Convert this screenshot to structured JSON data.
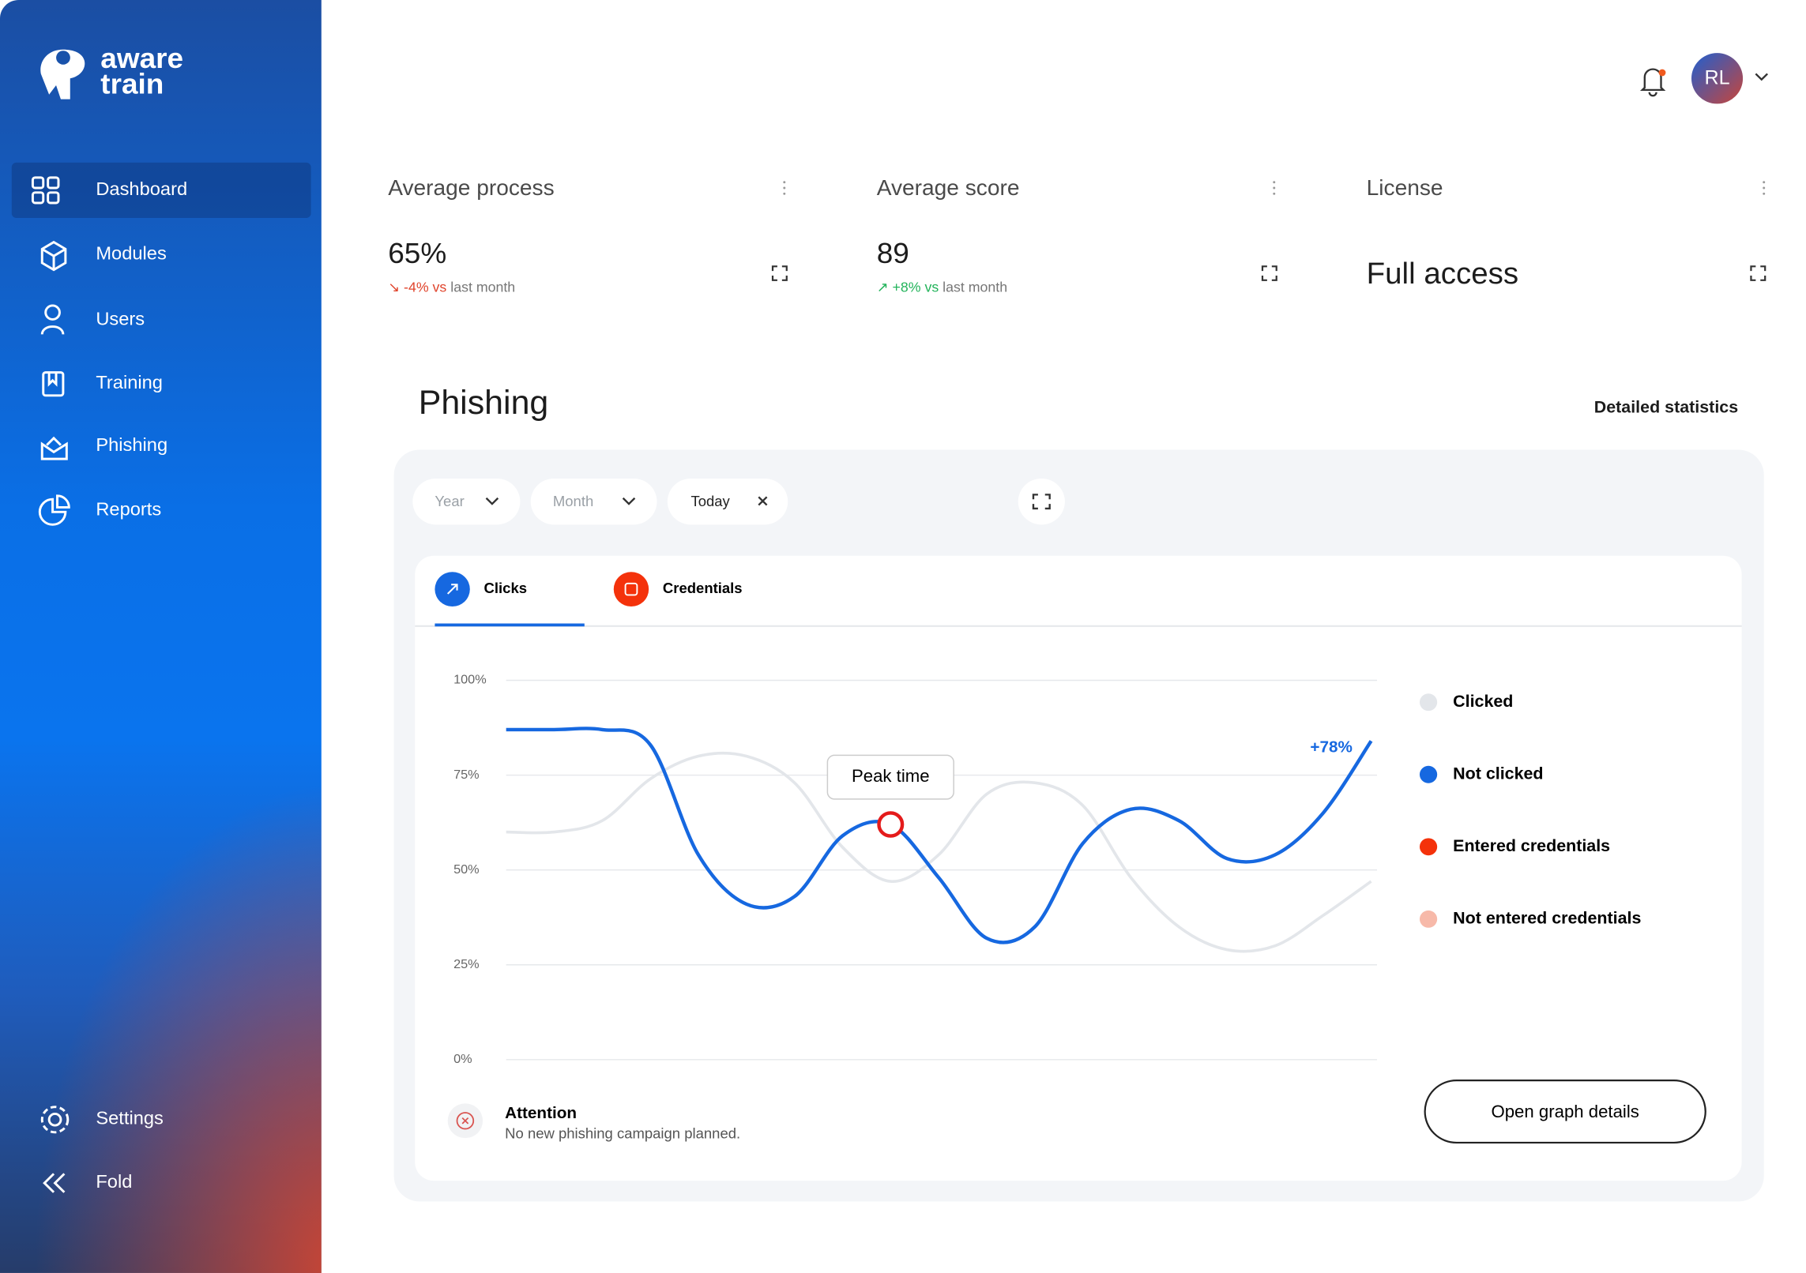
{
  "brand": {
    "line1": "aware",
    "line2": "train"
  },
  "nav": {
    "items": [
      "Dashboard",
      "Modules",
      "Users",
      "Training",
      "Phishing",
      "Reports"
    ],
    "bottom": [
      "Settings",
      "Fold"
    ]
  },
  "header": {
    "avatar": "RL"
  },
  "cards": [
    {
      "title": "Average process",
      "value": "65%",
      "change": "-4% vs",
      "period": "last month"
    },
    {
      "title": "Average score",
      "value": "89",
      "change": "+8% vs",
      "period": "last month"
    },
    {
      "title": "License",
      "value": "Full access"
    }
  ],
  "phishing": {
    "title": "Phishing",
    "link": "Detailed statistics",
    "filters": [
      "Year",
      "Month",
      "Today"
    ],
    "tabs": [
      "Clicks",
      "Credentials"
    ],
    "attention": {
      "title": "Attention",
      "text": "No new phishing campaign planned."
    },
    "button": "Open graph details"
  },
  "chart_data": {
    "type": "line",
    "categories": [
      null,
      null,
      null,
      null,
      null,
      null,
      null,
      null,
      null,
      null,
      null,
      null,
      null,
      null,
      null,
      null,
      null,
      null,
      null
    ],
    "series": [
      {
        "name": "Clicked",
        "color": "#e3e6ea",
        "values": [
          60,
          60,
          63,
          74,
          80,
          80,
          73,
          56,
          47,
          54,
          70,
          73,
          67,
          48,
          35,
          29,
          30,
          38,
          47
        ]
      },
      {
        "name": "Not clicked",
        "color": "#1668e0",
        "values": [
          87,
          87,
          87,
          83,
          54,
          41,
          43,
          59,
          62,
          48,
          32,
          35,
          57,
          66,
          63,
          53,
          54,
          65,
          84
        ]
      }
    ],
    "extra_legend": [
      {
        "name": "Entered credentials",
        "color": "#f4320b"
      },
      {
        "name": "Not entered credentials",
        "color": "#f7b9a9"
      }
    ],
    "ylim": [
      0,
      100
    ],
    "yticks": [
      {
        "value": 0,
        "label": "0%"
      },
      {
        "value": 25,
        "label": "25%"
      },
      {
        "value": 50,
        "label": "50%"
      },
      {
        "value": 75,
        "label": "75%"
      },
      {
        "value": 100,
        "label": "100%"
      }
    ],
    "grid": true,
    "annotations": {
      "peak": "Peak time",
      "end": "+78%"
    }
  }
}
